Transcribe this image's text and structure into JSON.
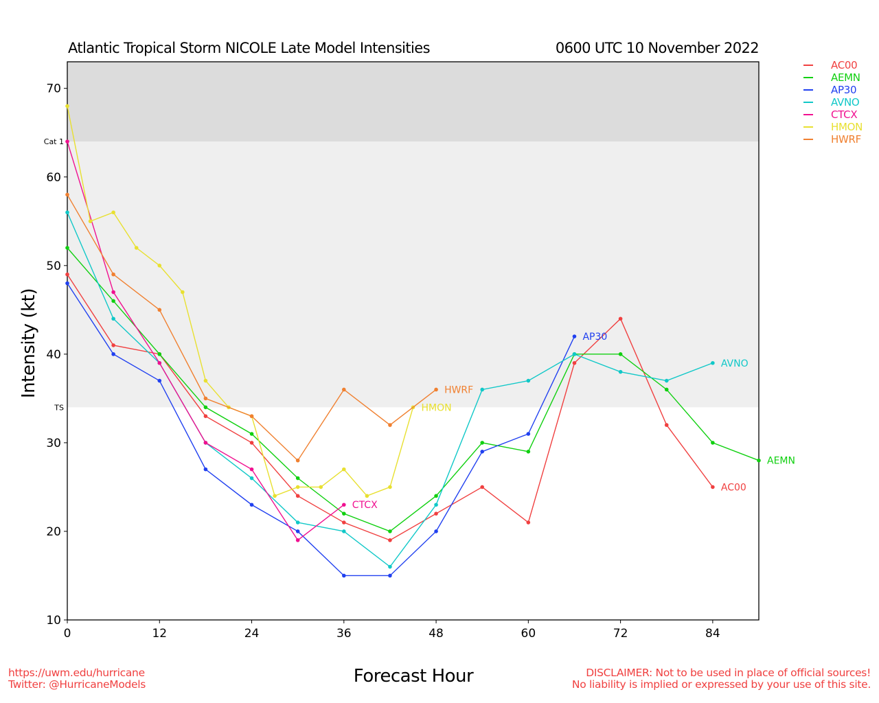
{
  "header": {
    "title": "Atlantic Tropical Storm NICOLE Late Model Intensities",
    "datetime": "0600 UTC 10 November 2022"
  },
  "footer": {
    "left_line1": "https://uwm.edu/hurricane",
    "left_line2": "Twitter: @HurricaneModels",
    "right_line1": "DISCLAIMER: Not to be used in place of official sources!",
    "right_line2": "No liability is implied or expressed by your use of this site."
  },
  "chart_data": {
    "type": "line",
    "title": "Atlantic Tropical Storm NICOLE Late Model Intensities",
    "subtitle": "0600 UTC 10 November 2022",
    "xlabel": "Forecast Hour",
    "ylabel": "Intensity (kt)",
    "xlim": [
      0,
      90
    ],
    "ylim": [
      10,
      73
    ],
    "xticks": [
      0,
      12,
      24,
      36,
      48,
      60,
      72,
      84
    ],
    "yticks": [
      10,
      20,
      30,
      40,
      50,
      60,
      70
    ],
    "grid": false,
    "legend_position": "right",
    "bands": [
      {
        "label": "TS",
        "from": 34,
        "to": 64,
        "color": "#efefef"
      },
      {
        "label": "Cat 1",
        "from": 64,
        "to": 73,
        "color": "#dcdcdc"
      }
    ],
    "series": [
      {
        "name": "AC00",
        "color": "#f04040",
        "x": [
          0,
          6,
          12,
          18,
          24,
          30,
          36,
          42,
          48,
          54,
          60,
          66,
          72,
          78,
          84
        ],
        "values": [
          49,
          41,
          40,
          33,
          30,
          24,
          21,
          19,
          22,
          25,
          21,
          39,
          44,
          32,
          25
        ]
      },
      {
        "name": "AEMN",
        "color": "#10d010",
        "x": [
          0,
          6,
          12,
          18,
          24,
          30,
          36,
          42,
          48,
          54,
          60,
          66,
          72,
          78,
          84,
          90
        ],
        "values": [
          52,
          46,
          40,
          34,
          31,
          26,
          22,
          20,
          24,
          30,
          29,
          40,
          40,
          36,
          30,
          28
        ]
      },
      {
        "name": "AP30",
        "color": "#2040f0",
        "x": [
          0,
          6,
          12,
          18,
          24,
          30,
          36,
          42,
          48,
          54,
          60,
          66
        ],
        "values": [
          48,
          40,
          37,
          27,
          23,
          20,
          15,
          15,
          20,
          29,
          31,
          42
        ]
      },
      {
        "name": "AVNO",
        "color": "#10c8c8",
        "x": [
          0,
          6,
          12,
          18,
          24,
          30,
          36,
          42,
          48,
          54,
          60,
          66,
          72,
          78,
          84
        ],
        "values": [
          56,
          44,
          39,
          30,
          26,
          21,
          20,
          16,
          23,
          36,
          37,
          40,
          38,
          37,
          39
        ]
      },
      {
        "name": "CTCX",
        "color": "#f01090",
        "x": [
          0,
          6,
          12,
          18,
          24,
          30,
          36
        ],
        "values": [
          64,
          47,
          39,
          30,
          27,
          19,
          23
        ]
      },
      {
        "name": "HMON",
        "color": "#e8e030",
        "x": [
          0,
          3,
          6,
          9,
          12,
          15,
          18,
          21,
          24,
          27,
          30,
          33,
          36,
          39,
          42,
          45
        ],
        "values": [
          68,
          55,
          56,
          52,
          50,
          47,
          37,
          34,
          33,
          24,
          25,
          25,
          27,
          24,
          25,
          34
        ]
      },
      {
        "name": "HWRF",
        "color": "#f08030",
        "x": [
          0,
          6,
          12,
          18,
          24,
          30,
          36,
          42,
          48
        ],
        "values": [
          58,
          49,
          45,
          35,
          33,
          28,
          36,
          32,
          36
        ]
      }
    ],
    "end_labels": [
      "AC00",
      "AEMN",
      "AP30",
      "AVNO",
      "CTCX",
      "HMON",
      "HWRF"
    ]
  }
}
